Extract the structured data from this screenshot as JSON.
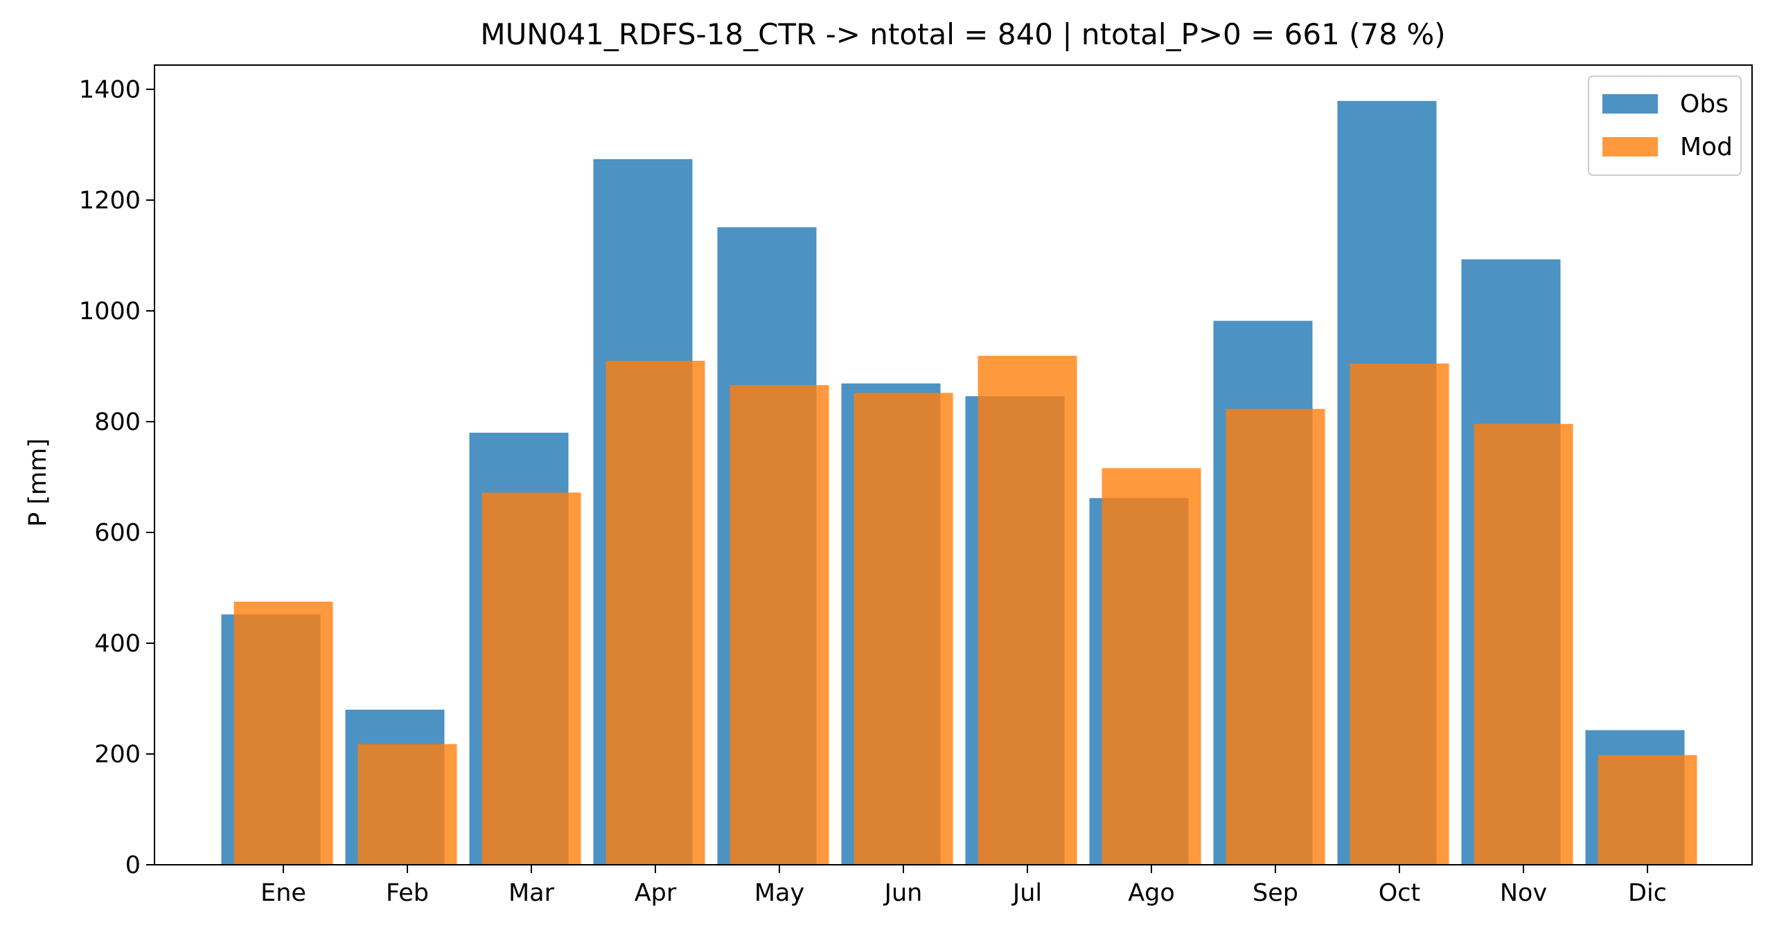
{
  "chart_data": {
    "type": "bar",
    "title": "MUN041_RDFS-18_CTR -> ntotal = 840 | ntotal_P>0 = 661 (78 %)",
    "xlabel": "",
    "ylabel": "P [mm]",
    "categories": [
      "Ene",
      "Feb",
      "Mar",
      "Apr",
      "May",
      "Jun",
      "Jul",
      "Ago",
      "Sep",
      "Oct",
      "Nov",
      "Dic"
    ],
    "series": [
      {
        "name": "Obs",
        "color": "#1f77b4",
        "values": [
          452,
          280,
          780,
          1274,
          1151,
          869,
          846,
          662,
          982,
          1379,
          1093,
          243
        ]
      },
      {
        "name": "Mod",
        "color": "#ff7f0e",
        "values": [
          475,
          218,
          672,
          910,
          866,
          852,
          919,
          716,
          823,
          905,
          796,
          198
        ]
      }
    ],
    "yticks": [
      0,
      200,
      400,
      600,
      800,
      1000,
      1200,
      1400
    ],
    "ylim": [
      0,
      1450
    ],
    "grid": false,
    "legend_position": "top-right"
  }
}
